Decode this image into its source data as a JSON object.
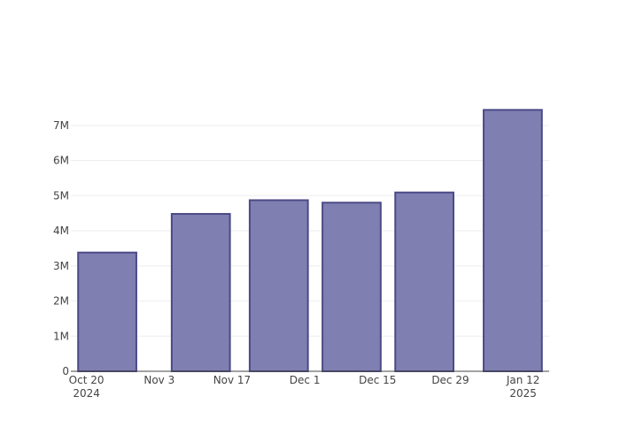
{
  "chart_data": {
    "type": "bar",
    "x": [
      "2024-10-24",
      "2024-11-11",
      "2024-11-26",
      "2024-12-10",
      "2024-12-24",
      "2025-01-10"
    ],
    "values": [
      3380000,
      4480000,
      4870000,
      4800000,
      5090000,
      7440000
    ],
    "color": "#7f7fb1",
    "edge_color": "#4c4a86",
    "xlim": [
      "2024-10-17",
      "2025-01-17"
    ],
    "xticks": [
      {
        "value": "2024-10-20",
        "label": "Oct 20\n2024"
      },
      {
        "value": "2024-11-03",
        "label": "Nov 3"
      },
      {
        "value": "2024-11-17",
        "label": "Nov 17"
      },
      {
        "value": "2024-12-01",
        "label": "Dec 1"
      },
      {
        "value": "2024-12-15",
        "label": "Dec 15"
      },
      {
        "value": "2024-12-29",
        "label": "Dec 29"
      },
      {
        "value": "2025-01-12",
        "label": "Jan 12\n2025"
      }
    ],
    "ylim": [
      0,
      7700000
    ],
    "yticks": [
      0,
      {
        "value": 1000000,
        "label": "1M"
      },
      {
        "value": 2000000,
        "label": "2M"
      },
      {
        "value": 3000000,
        "label": "3M"
      },
      {
        "value": 4000000,
        "label": "4M"
      },
      {
        "value": 5000000,
        "label": "5M"
      },
      {
        "value": 6000000,
        "label": "6M"
      },
      {
        "value": 7000000,
        "label": "7M"
      }
    ],
    "grid": true
  }
}
